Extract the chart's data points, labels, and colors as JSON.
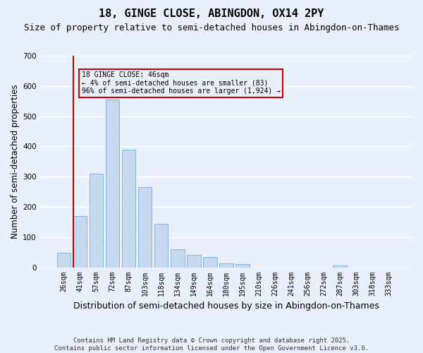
{
  "title": "18, GINGE CLOSE, ABINGDON, OX14 2PY",
  "subtitle": "Size of property relative to semi-detached houses in Abingdon-on-Thames",
  "xlabel": "Distribution of semi-detached houses by size in Abingdon-on-Thames",
  "ylabel": "Number of semi-detached properties",
  "categories": [
    "26sqm",
    "41sqm",
    "57sqm",
    "72sqm",
    "87sqm",
    "103sqm",
    "118sqm",
    "134sqm",
    "149sqm",
    "164sqm",
    "180sqm",
    "195sqm",
    "210sqm",
    "226sqm",
    "241sqm",
    "256sqm",
    "272sqm",
    "287sqm",
    "303sqm",
    "318sqm",
    "333sqm"
  ],
  "values": [
    47,
    170,
    310,
    555,
    390,
    265,
    145,
    60,
    40,
    35,
    12,
    10,
    0,
    0,
    0,
    0,
    0,
    5,
    0,
    0,
    0
  ],
  "bar_color": "#c5d8f0",
  "bar_edge_color": "#7bafd4",
  "vline_color": "#cc0000",
  "annotation_box_text": "18 GINGE CLOSE: 46sqm\n← 4% of semi-detached houses are smaller (83)\n96% of semi-detached houses are larger (1,924) →",
  "annotation_box_color": "#cc0000",
  "ylim": [
    0,
    700
  ],
  "yticks": [
    0,
    100,
    200,
    300,
    400,
    500,
    600,
    700
  ],
  "footnote": "Contains HM Land Registry data © Crown copyright and database right 2025.\nContains public sector information licensed under the Open Government Licence v3.0.",
  "background_color": "#eaf0fb",
  "grid_color": "#ffffff",
  "title_fontsize": 11,
  "subtitle_fontsize": 9,
  "axis_label_fontsize": 8.5,
  "tick_fontsize": 7,
  "footnote_fontsize": 6.5
}
